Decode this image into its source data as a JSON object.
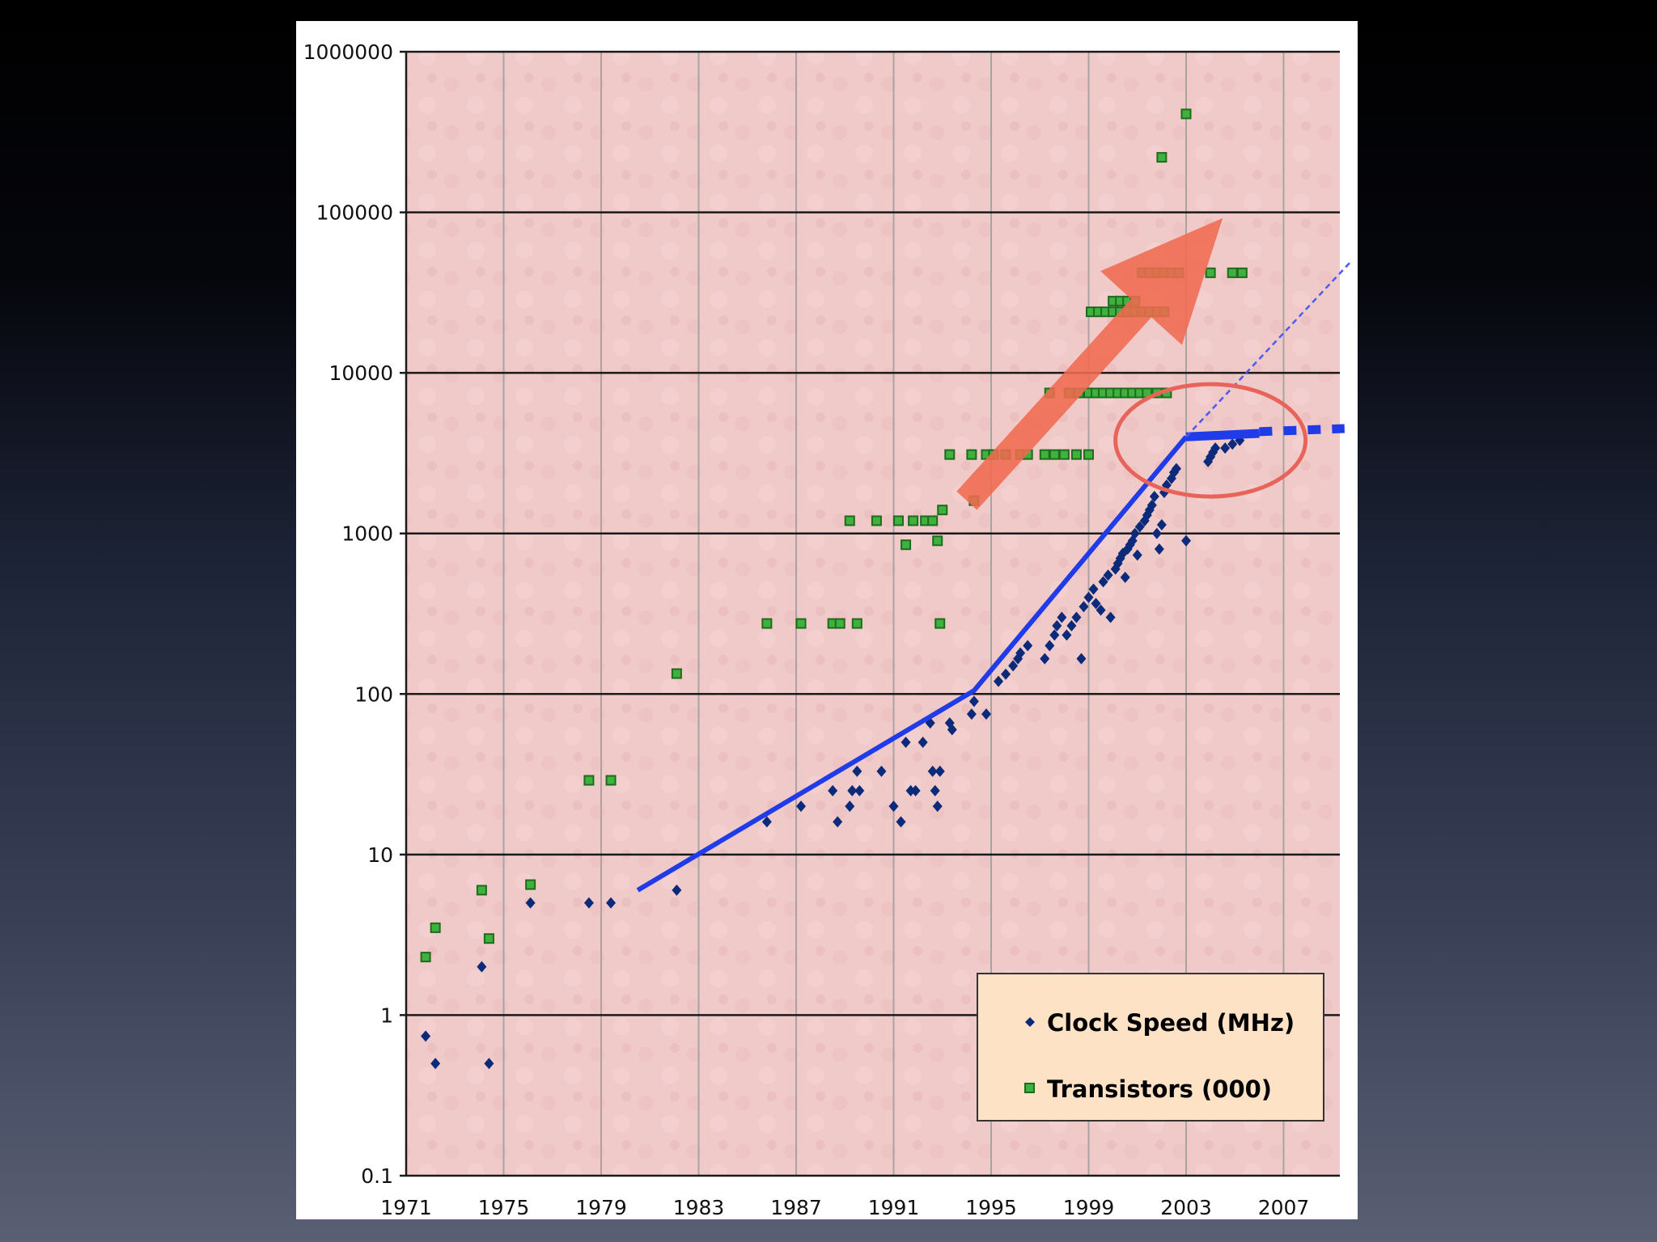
{
  "chart_data": {
    "type": "scatter",
    "title": "",
    "xlabel": "",
    "ylabel": "",
    "xlim": [
      1971,
      2010
    ],
    "ylim": [
      0.1,
      1000000
    ],
    "y_scale": "log",
    "grid": true,
    "legend_placement": "bottom-right",
    "plot_background": "#f0c9c9",
    "x_ticks": [
      "1971",
      "1975",
      "1979",
      "1983",
      "1987",
      "1991",
      "1995",
      "1999",
      "2003",
      "2007"
    ],
    "y_ticks": [
      "0.1",
      "1",
      "10",
      "100",
      "1000",
      "10000",
      "100000",
      "1000000"
    ],
    "series": [
      {
        "name": "Clock Speed (MHz)",
        "color": "#0b2a7a",
        "marker": "diamond",
        "points": [
          [
            1971.8,
            0.74
          ],
          [
            1972.2,
            0.5
          ],
          [
            1974.1,
            2
          ],
          [
            1974.4,
            0.5
          ],
          [
            1976.1,
            5
          ],
          [
            1978.5,
            5
          ],
          [
            1979.4,
            5
          ],
          [
            1982.1,
            6
          ],
          [
            1985.8,
            16
          ],
          [
            1987.2,
            20
          ],
          [
            1988.5,
            25
          ],
          [
            1988.7,
            16
          ],
          [
            1989.2,
            20
          ],
          [
            1989.3,
            25
          ],
          [
            1989.5,
            33
          ],
          [
            1989.6,
            25
          ],
          [
            1990.5,
            33
          ],
          [
            1991.0,
            20
          ],
          [
            1991.3,
            16
          ],
          [
            1991.5,
            50
          ],
          [
            1991.7,
            25
          ],
          [
            1991.9,
            25
          ],
          [
            1992.2,
            50
          ],
          [
            1992.5,
            66
          ],
          [
            1992.6,
            33
          ],
          [
            1992.7,
            25
          ],
          [
            1992.8,
            20
          ],
          [
            1992.9,
            33
          ],
          [
            1993.3,
            66
          ],
          [
            1993.4,
            60
          ],
          [
            1994.2,
            75
          ],
          [
            1994.3,
            90
          ],
          [
            1994.8,
            75
          ],
          [
            1995.3,
            120
          ],
          [
            1995.6,
            133
          ],
          [
            1995.9,
            150
          ],
          [
            1996.1,
            166
          ],
          [
            1996.2,
            180
          ],
          [
            1996.5,
            200
          ],
          [
            1997.2,
            166
          ],
          [
            1997.4,
            200
          ],
          [
            1997.6,
            233
          ],
          [
            1997.7,
            266
          ],
          [
            1997.9,
            300
          ],
          [
            1998.1,
            233
          ],
          [
            1998.3,
            266
          ],
          [
            1998.5,
            300
          ],
          [
            1998.7,
            166
          ],
          [
            1998.8,
            350
          ],
          [
            1999.0,
            400
          ],
          [
            1999.2,
            450
          ],
          [
            1999.3,
            366
          ],
          [
            1999.5,
            333
          ],
          [
            1999.6,
            500
          ],
          [
            1999.8,
            550
          ],
          [
            1999.9,
            300
          ],
          [
            2000.1,
            600
          ],
          [
            2000.2,
            650
          ],
          [
            2000.3,
            700
          ],
          [
            2000.4,
            750
          ],
          [
            2000.5,
            533
          ],
          [
            2000.6,
            800
          ],
          [
            2000.7,
            850
          ],
          [
            2000.8,
            900
          ],
          [
            2000.9,
            1000
          ],
          [
            2001.0,
            733
          ],
          [
            2001.1,
            1100
          ],
          [
            2001.3,
            1200
          ],
          [
            2001.4,
            1300
          ],
          [
            2001.5,
            1400
          ],
          [
            2001.6,
            1500
          ],
          [
            2001.7,
            1700
          ],
          [
            2001.8,
            1000
          ],
          [
            2001.9,
            800
          ],
          [
            2002.0,
            1133
          ],
          [
            2002.1,
            1800
          ],
          [
            2002.2,
            2000
          ],
          [
            2002.4,
            2200
          ],
          [
            2002.5,
            2400
          ],
          [
            2002.6,
            2530
          ],
          [
            2003.0,
            900
          ],
          [
            2003.9,
            2800
          ],
          [
            2004.0,
            3000
          ],
          [
            2004.1,
            3200
          ],
          [
            2004.2,
            3400
          ],
          [
            2004.6,
            3400
          ],
          [
            2004.9,
            3600
          ],
          [
            2005.2,
            3800
          ]
        ]
      },
      {
        "name": "Transistors (000)",
        "color": "#2a8a2a",
        "marker": "square",
        "points": [
          [
            1971.8,
            2.3
          ],
          [
            1972.2,
            3.5
          ],
          [
            1974.1,
            6
          ],
          [
            1974.4,
            3
          ],
          [
            1976.1,
            6.5
          ],
          [
            1978.5,
            29
          ],
          [
            1979.4,
            29
          ],
          [
            1982.1,
            134
          ],
          [
            1985.8,
            275
          ],
          [
            1987.2,
            275
          ],
          [
            1988.5,
            275
          ],
          [
            1988.8,
            275
          ],
          [
            1989.5,
            275
          ],
          [
            1989.2,
            1200
          ],
          [
            1990.3,
            1200
          ],
          [
            1991.2,
            1200
          ],
          [
            1991.5,
            850
          ],
          [
            1991.8,
            1200
          ],
          [
            1992.3,
            1200
          ],
          [
            1992.6,
            1200
          ],
          [
            1992.8,
            900
          ],
          [
            1992.9,
            275
          ],
          [
            1993.0,
            1400
          ],
          [
            1993.3,
            3100
          ],
          [
            1994.2,
            3100
          ],
          [
            1994.3,
            1600
          ],
          [
            1994.8,
            3100
          ],
          [
            1995.1,
            3100
          ],
          [
            1995.6,
            3100
          ],
          [
            1996.2,
            3100
          ],
          [
            1996.5,
            3100
          ],
          [
            1997.2,
            3100
          ],
          [
            1997.6,
            3100
          ],
          [
            1998.0,
            3100
          ],
          [
            1998.5,
            3100
          ],
          [
            1999.0,
            3100
          ],
          [
            1997.4,
            7500
          ],
          [
            1998.2,
            7500
          ],
          [
            1998.6,
            7500
          ],
          [
            1999.0,
            7500
          ],
          [
            1999.3,
            7500
          ],
          [
            1999.6,
            7500
          ],
          [
            1999.9,
            7500
          ],
          [
            2000.2,
            7500
          ],
          [
            2000.5,
            7500
          ],
          [
            2000.8,
            7500
          ],
          [
            2001.1,
            7500
          ],
          [
            2001.4,
            7500
          ],
          [
            2001.8,
            7500
          ],
          [
            2002.2,
            7500
          ],
          [
            1999.1,
            24000
          ],
          [
            1999.4,
            24000
          ],
          [
            1999.7,
            24000
          ],
          [
            2000.0,
            24000
          ],
          [
            2000.3,
            24000
          ],
          [
            2000.6,
            24000
          ],
          [
            2000.9,
            24000
          ],
          [
            2001.2,
            24000
          ],
          [
            2001.5,
            24000
          ],
          [
            2001.8,
            24000
          ],
          [
            2002.1,
            24000
          ],
          [
            2000.0,
            28000
          ],
          [
            2000.3,
            28000
          ],
          [
            2000.6,
            28000
          ],
          [
            2000.9,
            28000
          ],
          [
            2001.2,
            42000
          ],
          [
            2001.5,
            42000
          ],
          [
            2001.8,
            42000
          ],
          [
            2002.1,
            42000
          ],
          [
            2002.4,
            42000
          ],
          [
            2002.7,
            42000
          ],
          [
            2004.0,
            42000
          ],
          [
            2004.9,
            42000
          ],
          [
            2005.3,
            42000
          ],
          [
            2002.0,
            220000
          ],
          [
            2003.0,
            410000
          ]
        ]
      }
    ],
    "trend_lines": [
      {
        "color": "#1f3ce8",
        "style": "solid",
        "points": [
          [
            1980.5,
            6
          ],
          [
            1994.3,
            105
          ],
          [
            2003.0,
            4000
          ]
        ]
      },
      {
        "color": "#1f3ce8",
        "style": "solid-thick",
        "points": [
          [
            2003.0,
            4000
          ],
          [
            2006.0,
            4200
          ]
        ]
      },
      {
        "color": "#1f3ce8",
        "style": "dashed-thick",
        "points": [
          [
            2006.0,
            4300
          ],
          [
            2009.5,
            4500
          ]
        ]
      },
      {
        "color": "#4a5cf0",
        "style": "dashed-thin",
        "points": [
          [
            2003.0,
            4000
          ],
          [
            2009.8,
            50000
          ]
        ]
      }
    ],
    "annotations": [
      {
        "kind": "arrow",
        "color": "#f06a50",
        "from": [
          1994.0,
          1600
        ],
        "to": [
          2004.5,
          92000
        ]
      },
      {
        "kind": "ellipse",
        "color": "#e8645a",
        "center": [
          2004.0,
          3800
        ],
        "x_radius": 3.9,
        "y_decades": 0.35
      }
    ]
  }
}
